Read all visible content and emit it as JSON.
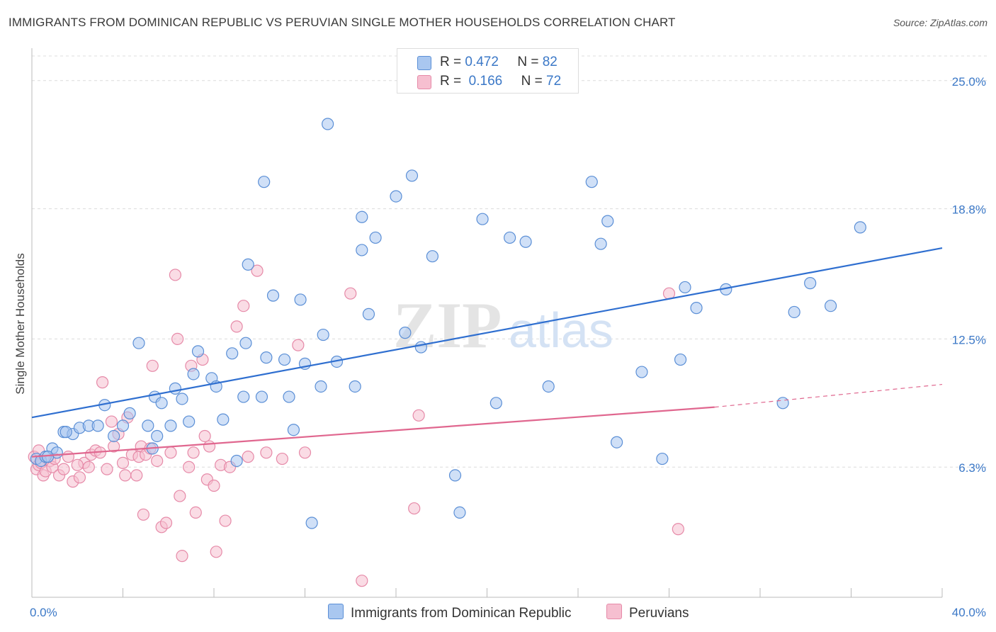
{
  "title": "IMMIGRANTS FROM DOMINICAN REPUBLIC VS PERUVIAN SINGLE MOTHER HOUSEHOLDS CORRELATION CHART",
  "source": "Source: ZipAtlas.com",
  "watermark": {
    "zip": "ZIP",
    "atlas": "atlas"
  },
  "colors": {
    "blue_fill": "#a9c7f0",
    "blue_stroke": "#5b8fd6",
    "blue_line": "#2f6fd0",
    "pink_fill": "#f6bfd0",
    "pink_stroke": "#e68aa8",
    "pink_line": "#e0678f",
    "tick_text": "#3b78c7",
    "grid": "#dcdcdc"
  },
  "legend": {
    "rows": [
      {
        "r_label": "R =",
        "r_value": "0.472",
        "n_label": "N =",
        "n_value": "82"
      },
      {
        "r_label": "R =",
        "r_value": "0.166",
        "n_label": "N =",
        "n_value": "72"
      }
    ]
  },
  "series_labels": [
    "Immigrants from Dominican Republic",
    "Peruvians"
  ],
  "chart_data": {
    "type": "scatter",
    "title": "IMMIGRANTS FROM DOMINICAN REPUBLIC VS PERUVIAN SINGLE MOTHER HOUSEHOLDS CORRELATION CHART",
    "xlabel": "",
    "ylabel": "Single Mother Households",
    "xlim": [
      0,
      40
    ],
    "ylim": [
      0,
      26.5
    ],
    "x_tick_labels": [
      "0.0%",
      "40.0%"
    ],
    "y_ticks": [
      6.3,
      12.5,
      18.8,
      25.0
    ],
    "y_tick_labels": [
      "6.3%",
      "12.5%",
      "18.8%",
      "25.0%"
    ],
    "grid": true,
    "legend_position": "top-center",
    "series": [
      {
        "name": "Immigrants from Dominican Republic",
        "trend": {
          "x": [
            0,
            40
          ],
          "y": [
            8.7,
            16.9
          ]
        },
        "points": [
          [
            0.2,
            6.7
          ],
          [
            0.4,
            6.6
          ],
          [
            0.6,
            6.8
          ],
          [
            0.9,
            7.2
          ],
          [
            1.1,
            7.0
          ],
          [
            1.4,
            8.0
          ],
          [
            1.8,
            7.9
          ],
          [
            2.1,
            8.2
          ],
          [
            2.5,
            8.3
          ],
          [
            2.9,
            8.3
          ],
          [
            3.2,
            9.3
          ],
          [
            3.6,
            7.8
          ],
          [
            4.0,
            8.3
          ],
          [
            4.3,
            8.9
          ],
          [
            4.7,
            12.3
          ],
          [
            5.1,
            8.3
          ],
          [
            5.3,
            7.2
          ],
          [
            5.5,
            7.8
          ],
          [
            5.4,
            9.7
          ],
          [
            5.7,
            9.4
          ],
          [
            6.1,
            8.3
          ],
          [
            6.3,
            10.1
          ],
          [
            6.6,
            9.6
          ],
          [
            6.9,
            8.5
          ],
          [
            7.1,
            10.8
          ],
          [
            7.3,
            11.9
          ],
          [
            7.9,
            10.6
          ],
          [
            8.1,
            10.2
          ],
          [
            8.4,
            8.6
          ],
          [
            8.8,
            11.8
          ],
          [
            9.0,
            6.6
          ],
          [
            9.3,
            9.7
          ],
          [
            9.4,
            12.3
          ],
          [
            9.5,
            16.1
          ],
          [
            10.1,
            9.7
          ],
          [
            10.3,
            11.6
          ],
          [
            10.6,
            14.6
          ],
          [
            10.2,
            20.1
          ],
          [
            11.1,
            11.5
          ],
          [
            11.3,
            9.7
          ],
          [
            11.5,
            8.1
          ],
          [
            11.8,
            14.4
          ],
          [
            12.0,
            11.3
          ],
          [
            12.3,
            3.6
          ],
          [
            12.7,
            10.2
          ],
          [
            12.8,
            12.7
          ],
          [
            13.0,
            22.9
          ],
          [
            13.4,
            11.4
          ],
          [
            14.2,
            10.2
          ],
          [
            14.5,
            16.8
          ],
          [
            14.5,
            18.4
          ],
          [
            14.8,
            13.7
          ],
          [
            15.1,
            17.4
          ],
          [
            16.0,
            19.4
          ],
          [
            16.4,
            12.8
          ],
          [
            16.7,
            20.4
          ],
          [
            17.1,
            12.1
          ],
          [
            17.6,
            16.5
          ],
          [
            18.6,
            5.9
          ],
          [
            18.8,
            4.1
          ],
          [
            19.8,
            18.3
          ],
          [
            20.4,
            9.4
          ],
          [
            21.0,
            17.4
          ],
          [
            21.7,
            17.2
          ],
          [
            22.7,
            10.2
          ],
          [
            24.6,
            20.1
          ],
          [
            25.0,
            17.1
          ],
          [
            25.3,
            18.2
          ],
          [
            25.7,
            7.5
          ],
          [
            26.8,
            10.9
          ],
          [
            27.7,
            6.7
          ],
          [
            28.5,
            11.5
          ],
          [
            28.7,
            15.0
          ],
          [
            29.2,
            14.0
          ],
          [
            30.5,
            14.9
          ],
          [
            33.0,
            9.4
          ],
          [
            33.5,
            13.8
          ],
          [
            34.2,
            15.2
          ],
          [
            35.1,
            14.1
          ],
          [
            36.4,
            17.9
          ],
          [
            0.7,
            6.8
          ],
          [
            1.5,
            8.0
          ]
        ]
      },
      {
        "name": "Peruvians",
        "trend": {
          "x": [
            0,
            30
          ],
          "y": [
            6.8,
            9.2
          ]
        },
        "trend_extension": {
          "x": [
            30,
            40
          ],
          "y": [
            9.2,
            10.3
          ]
        },
        "points": [
          [
            0.1,
            6.8
          ],
          [
            0.2,
            6.2
          ],
          [
            0.3,
            6.4
          ],
          [
            0.4,
            6.5
          ],
          [
            0.5,
            5.9
          ],
          [
            0.6,
            6.1
          ],
          [
            0.8,
            6.6
          ],
          [
            0.9,
            6.3
          ],
          [
            1.0,
            6.7
          ],
          [
            1.2,
            5.9
          ],
          [
            1.4,
            6.2
          ],
          [
            1.6,
            6.8
          ],
          [
            1.8,
            5.6
          ],
          [
            2.1,
            5.8
          ],
          [
            2.3,
            6.5
          ],
          [
            2.5,
            6.3
          ],
          [
            2.6,
            6.9
          ],
          [
            2.8,
            7.1
          ],
          [
            3.0,
            7.0
          ],
          [
            3.1,
            10.4
          ],
          [
            3.3,
            6.2
          ],
          [
            3.5,
            8.5
          ],
          [
            3.6,
            7.3
          ],
          [
            3.8,
            7.9
          ],
          [
            4.0,
            6.5
          ],
          [
            4.1,
            5.9
          ],
          [
            4.2,
            8.7
          ],
          [
            4.4,
            6.9
          ],
          [
            4.6,
            5.9
          ],
          [
            4.7,
            6.8
          ],
          [
            4.8,
            7.3
          ],
          [
            4.9,
            4.0
          ],
          [
            5.0,
            6.9
          ],
          [
            5.2,
            7.2
          ],
          [
            5.3,
            11.2
          ],
          [
            5.5,
            6.6
          ],
          [
            5.7,
            3.4
          ],
          [
            5.9,
            3.6
          ],
          [
            6.1,
            7.0
          ],
          [
            6.3,
            15.6
          ],
          [
            6.4,
            12.5
          ],
          [
            6.5,
            4.9
          ],
          [
            6.6,
            2.0
          ],
          [
            6.9,
            6.3
          ],
          [
            7.0,
            11.2
          ],
          [
            7.1,
            7.0
          ],
          [
            7.2,
            4.1
          ],
          [
            7.5,
            11.5
          ],
          [
            7.6,
            7.8
          ],
          [
            7.7,
            5.7
          ],
          [
            7.8,
            7.3
          ],
          [
            8.0,
            5.4
          ],
          [
            8.1,
            2.2
          ],
          [
            8.3,
            6.4
          ],
          [
            8.5,
            3.7
          ],
          [
            8.7,
            6.3
          ],
          [
            9.0,
            13.1
          ],
          [
            9.3,
            14.1
          ],
          [
            9.5,
            6.8
          ],
          [
            9.9,
            15.8
          ],
          [
            10.3,
            7.0
          ],
          [
            11.0,
            6.7
          ],
          [
            11.7,
            12.2
          ],
          [
            12.0,
            7.0
          ],
          [
            14.0,
            14.7
          ],
          [
            14.5,
            0.8
          ],
          [
            16.8,
            4.3
          ],
          [
            17.0,
            8.8
          ],
          [
            28.0,
            14.7
          ],
          [
            28.4,
            3.3
          ],
          [
            0.3,
            7.1
          ],
          [
            2.0,
            6.4
          ]
        ]
      }
    ]
  }
}
